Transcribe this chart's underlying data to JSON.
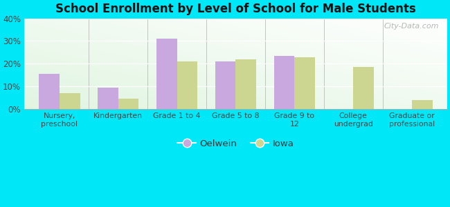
{
  "title": "School Enrollment by Level of School for Male Students",
  "categories": [
    "Nursery,\npreschool",
    "Kindergarten",
    "Grade 1 to 4",
    "Grade 5 to 8",
    "Grade 9 to\n12",
    "College\nundergrad",
    "Graduate or\nprofessional"
  ],
  "oelwein": [
    15.5,
    9.5,
    31.0,
    21.0,
    23.5,
    0,
    0
  ],
  "iowa": [
    7.0,
    4.5,
    21.0,
    22.0,
    23.0,
    18.5,
    4.0
  ],
  "oelwein_color": "#c9a8e0",
  "iowa_color": "#cdd690",
  "background_outer": "#00e8f8",
  "ylim": [
    0,
    40
  ],
  "yticks": [
    0,
    10,
    20,
    30,
    40
  ],
  "ytick_labels": [
    "0%",
    "10%",
    "20%",
    "30%",
    "40%"
  ],
  "bar_width": 0.35,
  "legend_labels": [
    "Oelwein",
    "Iowa"
  ],
  "watermark": "City-Data.com"
}
